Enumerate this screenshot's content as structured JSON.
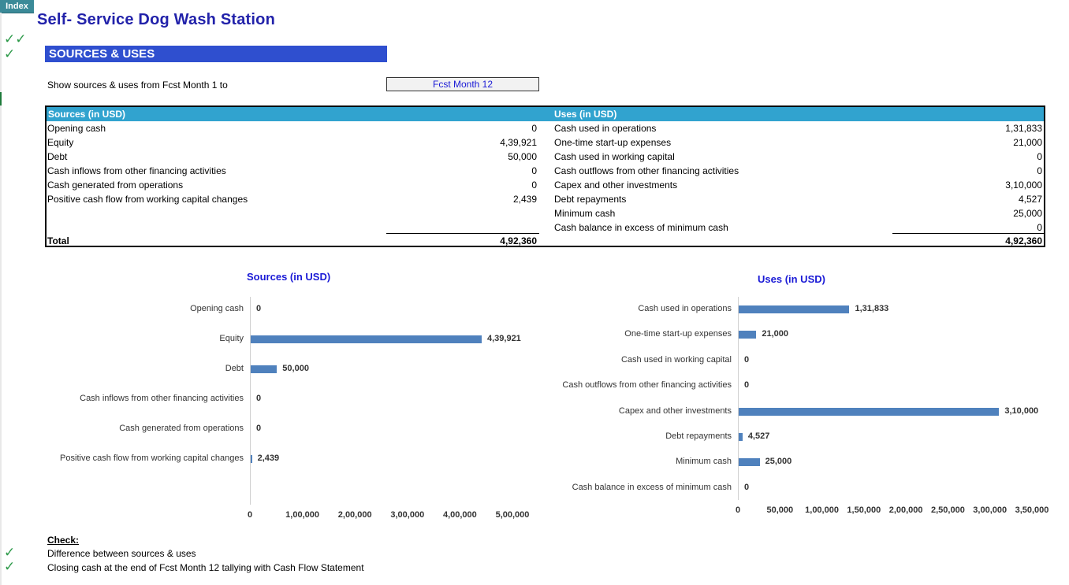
{
  "nav": {
    "index_label": "Index"
  },
  "title": "Self- Service Dog Wash Station",
  "section_title": "SOURCES & USES",
  "show_label": "Show sources & uses from Fcst Month 1 to",
  "month_select": {
    "value": "Fcst Month 12"
  },
  "check_icons": {
    "top": "✓✓",
    "second": "✓"
  },
  "table": {
    "sources_header": "Sources (in USD)",
    "uses_header": "Uses (in USD)",
    "sources": [
      {
        "label": "Opening cash",
        "value": "0"
      },
      {
        "label": "Equity",
        "value": "4,39,921"
      },
      {
        "label": "Debt",
        "value": "50,000"
      },
      {
        "label": "Cash inflows from other financing activities",
        "value": "0"
      },
      {
        "label": "Cash generated from operations",
        "value": "0"
      },
      {
        "label": "Positive cash flow from working capital changes",
        "value": "2,439"
      }
    ],
    "uses": [
      {
        "label": "Cash used in operations",
        "value": "1,31,833"
      },
      {
        "label": "One-time start-up expenses",
        "value": "21,000"
      },
      {
        "label": "Cash used in working capital",
        "value": "0"
      },
      {
        "label": "Cash outflows from other  financing activities",
        "value": "0"
      },
      {
        "label": "Capex and other investments",
        "value": "3,10,000"
      },
      {
        "label": "Debt repayments",
        "value": "4,527"
      },
      {
        "label": "Minimum cash",
        "value": "25,000"
      },
      {
        "label": "Cash balance in excess of minimum cash",
        "value": "0"
      }
    ],
    "total_label": "Total",
    "sources_total": "4,92,360",
    "uses_total": "4,92,360"
  },
  "chart_data": [
    {
      "type": "bar",
      "orientation": "horizontal",
      "title": "Sources (in USD)",
      "categories": [
        "Opening cash",
        "Equity",
        "Debt",
        "Cash inflows from other financing activities",
        "Cash generated from operations",
        "Positive cash flow from working capital changes"
      ],
      "values": [
        0,
        439921,
        50000,
        0,
        0,
        2439
      ],
      "value_labels": [
        "0",
        "4,39,921",
        "50,000",
        "0",
        "0",
        "2,439"
      ],
      "xlim": [
        0,
        500000
      ],
      "x_ticks": [
        "0",
        "1,00,000",
        "2,00,000",
        "3,00,000",
        "4,00,000",
        "5,00,000"
      ],
      "color": "#4f81bd",
      "grid": false,
      "legend": "none"
    },
    {
      "type": "bar",
      "orientation": "horizontal",
      "title": "Uses (in USD)",
      "categories": [
        "Cash used in operations",
        "One-time start-up expenses",
        "Cash used in working capital",
        "Cash outflows from other  financing activities",
        "Capex and other investments",
        "Debt repayments",
        "Minimum cash",
        "Cash balance in excess of minimum cash"
      ],
      "values": [
        131833,
        21000,
        0,
        0,
        310000,
        4527,
        25000,
        0
      ],
      "value_labels": [
        "1,31,833",
        "21,000",
        "0",
        "0",
        "3,10,000",
        "4,527",
        "25,000",
        "0"
      ],
      "xlim": [
        0,
        350000
      ],
      "x_ticks": [
        "0",
        "50,000",
        "1,00,000",
        "1,50,000",
        "2,00,000",
        "2,50,000",
        "3,00,000",
        "3,50,000"
      ],
      "color": "#4f81bd",
      "grid": false,
      "legend": "none"
    }
  ],
  "check_section": {
    "heading": "Check:",
    "items": [
      {
        "label": "Difference between sources & uses",
        "icon": "✓"
      },
      {
        "label": "Closing cash at the end of Fcst Month 12 tallying with Cash Flow Statement",
        "icon": "✓"
      }
    ]
  }
}
